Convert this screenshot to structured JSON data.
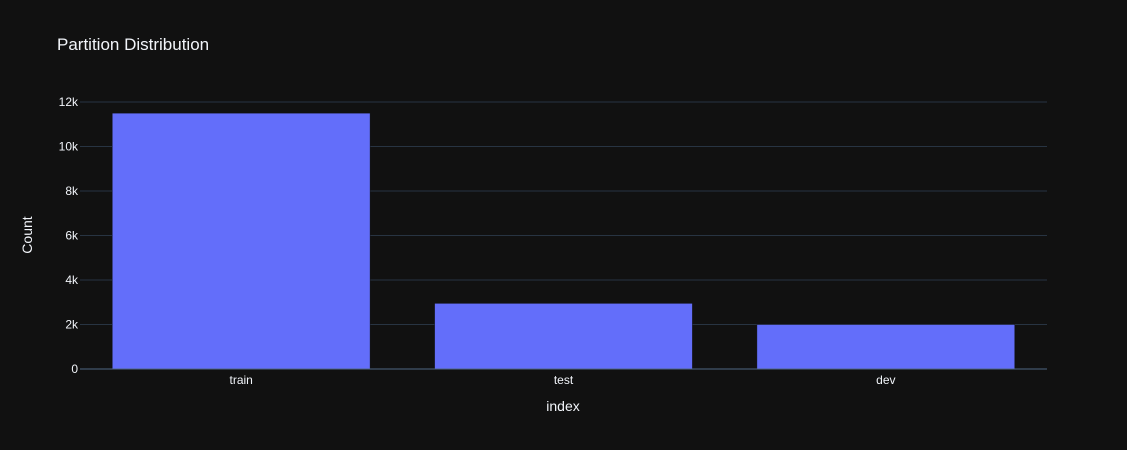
{
  "chart_data": {
    "type": "bar",
    "title": "Partition Distribution",
    "xlabel": "index",
    "ylabel": "Count",
    "categories": [
      "train",
      "test",
      "dev"
    ],
    "values": [
      11500,
      2950,
      2000
    ],
    "ylim": [
      0,
      12000
    ],
    "yticks": [
      0,
      2000,
      4000,
      6000,
      8000,
      10000,
      12000
    ],
    "ytick_labels": [
      "0",
      "2k",
      "4k",
      "6k",
      "8k",
      "10k",
      "12k"
    ],
    "grid": true,
    "colors": {
      "background": "#111111",
      "bar": "#636efa",
      "grid": "#283442",
      "text": "#f2f5fa"
    }
  }
}
